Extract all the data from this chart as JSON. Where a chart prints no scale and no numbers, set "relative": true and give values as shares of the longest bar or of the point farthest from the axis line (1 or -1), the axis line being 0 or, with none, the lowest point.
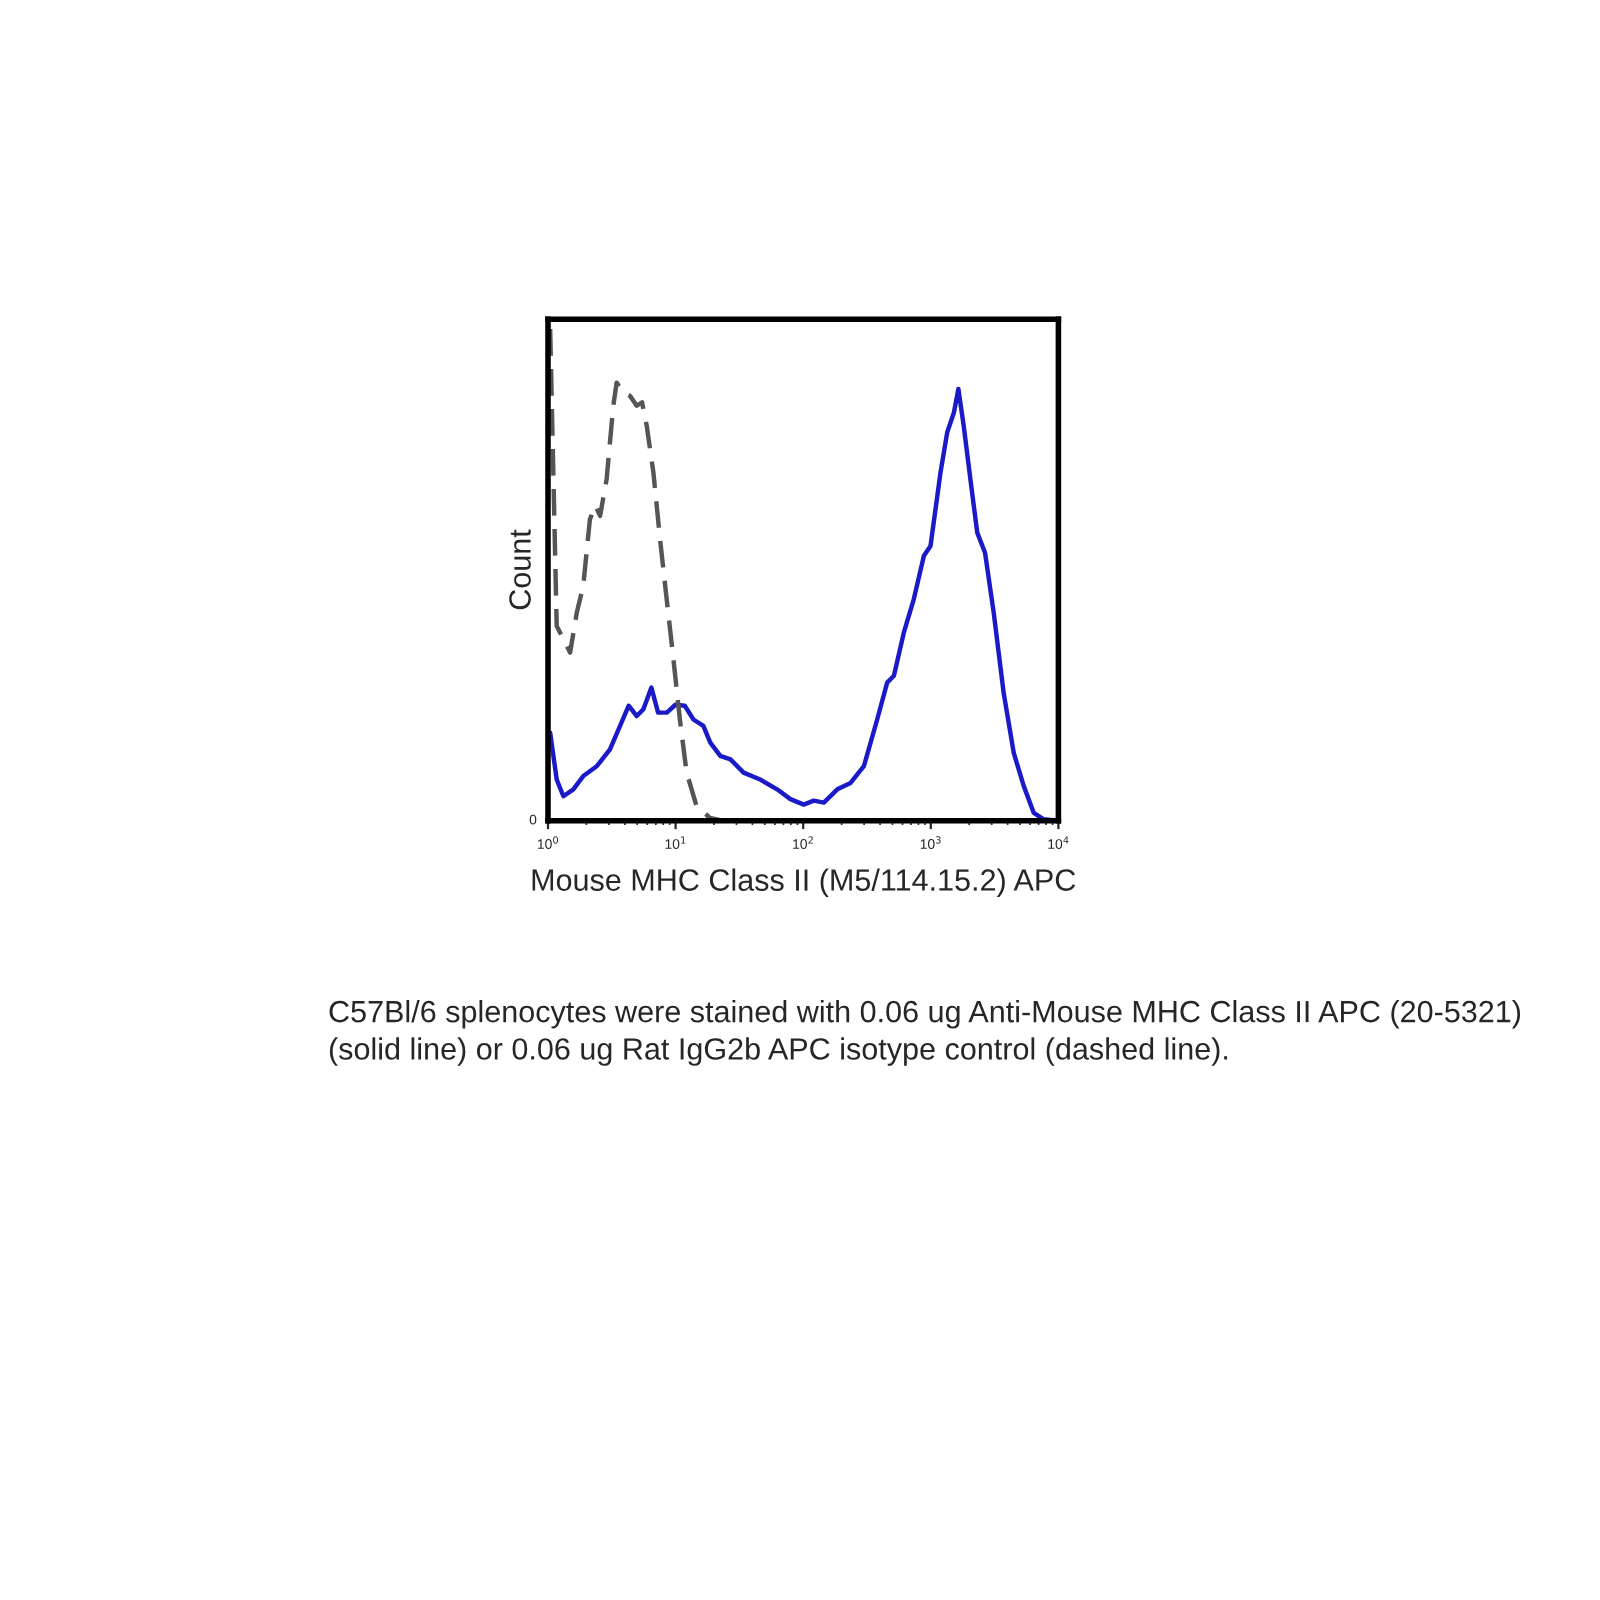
{
  "chart_data": {
    "type": "line",
    "relative": true,
    "xlabel": "Mouse MHC Class II (M5/114.15.2) APC",
    "ylabel": "Count",
    "log": "x",
    "xlim": [
      1,
      10000
    ],
    "xticks": [
      {
        "value": 1,
        "label": "10$^{0}$"
      },
      {
        "value": 10,
        "label": "10$^{1}$"
      },
      {
        "value": 100,
        "label": "10$^{2}$"
      },
      {
        "value": 1000,
        "label": "10$^{3}$"
      },
      {
        "value": 10000,
        "label": "10$^{4}$"
      }
    ],
    "grid": false,
    "legend": false,
    "series": [
      {
        "color": "#1a1ac8",
        "line_style": "solid",
        "x": [
          1.04,
          1.17,
          1.32,
          1.58,
          1.89,
          2.41,
          3.06,
          3.67,
          4.29,
          4.96,
          5.59,
          6.46,
          7.29,
          8.53,
          9.97,
          11.8,
          13.8,
          16.5,
          18.7,
          22.4,
          26.9,
          34.1,
          46.0,
          62.4,
          79.4,
          101,
          121,
          145,
          185,
          235,
          299,
          380,
          455,
          514,
          615,
          736,
          883,
          995,
          1191,
          1345,
          1517,
          1645,
          1811,
          2042,
          2312,
          2661,
          3112,
          3724,
          4467,
          5346,
          6412,
          7674,
          9772
        ],
        "values": [
          0.179,
          0.084,
          0.05,
          0.064,
          0.091,
          0.111,
          0.145,
          0.193,
          0.234,
          0.213,
          0.227,
          0.271,
          0.22,
          0.22,
          0.236,
          0.234,
          0.206,
          0.193,
          0.159,
          0.132,
          0.125,
          0.098,
          0.084,
          0.064,
          0.044,
          0.033,
          0.041,
          0.037,
          0.064,
          0.077,
          0.111,
          0.206,
          0.281,
          0.295,
          0.383,
          0.451,
          0.539,
          0.559,
          0.708,
          0.79,
          0.83,
          0.878,
          0.803,
          0.695,
          0.586,
          0.545,
          0.423,
          0.26,
          0.138,
          0.071,
          0.016,
          0.003,
          0.0
        ]
      },
      {
        "color": "#555555",
        "line_style": "dashed",
        "x": [
          1.04,
          1.17,
          1.49,
          1.68,
          1.89,
          2.13,
          2.35,
          2.56,
          2.88,
          3.25,
          3.45,
          3.9,
          4.4,
          4.96,
          5.46,
          5.94,
          6.7,
          7.55,
          8.51,
          9.62,
          10.8,
          12.2,
          14.6,
          18.6,
          23.7
        ],
        "values": [
          1.0,
          0.396,
          0.342,
          0.423,
          0.478,
          0.613,
          0.641,
          0.62,
          0.695,
          0.844,
          0.891,
          0.871,
          0.864,
          0.844,
          0.851,
          0.803,
          0.708,
          0.573,
          0.451,
          0.328,
          0.206,
          0.098,
          0.03,
          0.006,
          0.0
        ]
      }
    ],
    "annotations": [
      "0",
      "C57Bl/6 splenocytes were stained with 0.06 ug Anti-Mouse MHC Class II APC (20-5321) (solid line) or 0.06 ug Rat IgG2b APC isotype control (dashed line)."
    ]
  }
}
